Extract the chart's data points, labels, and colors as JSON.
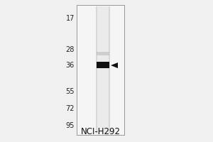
{
  "title": "NCI-H292",
  "mw_markers": [
    95,
    72,
    55,
    36,
    28,
    17
  ],
  "band_mw": 36,
  "bg_color": "#f0f0f0",
  "gel_bg_color": "#ffffff",
  "lane_outer_color": "#d0d0d0",
  "lane_inner_color": "#e8e8e8",
  "band_color": "#111111",
  "faint_band_color": "#cccccc",
  "arrow_color": "#111111",
  "marker_label_color": "#222222",
  "title_color": "#111111",
  "title_fontsize": 8.5,
  "marker_fontsize": 7.0,
  "border_color": "#888888"
}
